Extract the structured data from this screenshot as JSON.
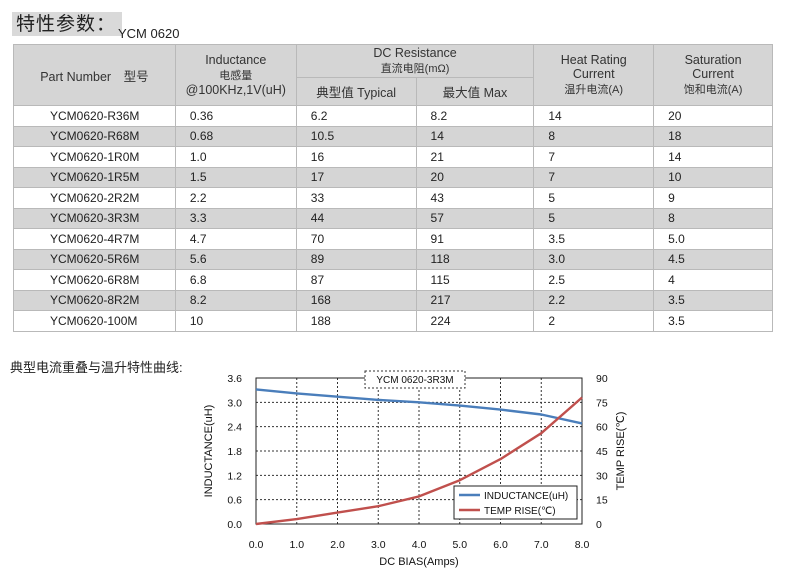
{
  "title": "特性参数：",
  "model": "YCM 0620",
  "table": {
    "headers": {
      "part": "Part Number　型号",
      "inductance": [
        "Inductance",
        "电感量",
        "@100KHz,1V(uH)"
      ],
      "dcr": [
        "DC Resistance",
        "直流电阻(mΩ)"
      ],
      "dcr_typ": "典型值 Typical",
      "dcr_max": "最大值 Max",
      "heat": [
        "Heat Rating",
        "Current",
        "温升电流(A)"
      ],
      "sat": [
        "Saturation",
        "Current",
        "饱和电流(A)"
      ]
    },
    "rows": [
      [
        "YCM0620-R36M",
        "0.36",
        "6.2",
        "8.2",
        "14",
        "20"
      ],
      [
        "YCM0620-R68M",
        "0.68",
        "10.5",
        "14",
        "8",
        "18"
      ],
      [
        "YCM0620-1R0M",
        "1.0",
        "16",
        "21",
        "7",
        "14"
      ],
      [
        "YCM0620-1R5M",
        "1.5",
        "17",
        "20",
        "7",
        "10"
      ],
      [
        "YCM0620-2R2M",
        "2.2",
        "33",
        "43",
        "5",
        "9"
      ],
      [
        "YCM0620-3R3M",
        "3.3",
        "44",
        "57",
        "5",
        "8"
      ],
      [
        "YCM0620-4R7M",
        "4.7",
        "70",
        "91",
        "3.5",
        "5.0"
      ],
      [
        "YCM0620-5R6M",
        "5.6",
        "89",
        "118",
        "3.0",
        "4.5"
      ],
      [
        "YCM0620-6R8M",
        "6.8",
        "87",
        "115",
        "2.5",
        "4"
      ],
      [
        "YCM0620-8R2M",
        "8.2",
        "168",
        "217",
        "2.2",
        "3.5"
      ],
      [
        "YCM0620-100M",
        "10",
        "188",
        "224",
        "2",
        "3.5"
      ]
    ]
  },
  "curve_section_title": "典型电流重叠与温升特性曲线:",
  "chart_data": {
    "type": "line",
    "title": "YCM 0620-3R3M",
    "xlabel": "DC BIAS(Amps)",
    "ylabel": "INDUCTANCE(uH)",
    "y2label": "TEMP RISE(℃)",
    "xlim": [
      0,
      8
    ],
    "ylim": [
      0,
      3.6
    ],
    "y2lim": [
      0,
      90
    ],
    "xticks": [
      "0.0",
      "1.0",
      "2.0",
      "3.0",
      "4.0",
      "5.0",
      "6.0",
      "7.0",
      "8.0"
    ],
    "yticks": [
      "0.0",
      "0.6",
      "1.2",
      "1.8",
      "2.4",
      "3.0",
      "3.6"
    ],
    "y2ticks": [
      "0",
      "15",
      "30",
      "45",
      "60",
      "75",
      "90"
    ],
    "grid": true,
    "legend_position": "bottom-right",
    "series": [
      {
        "name": "INDUCTANCE(uH)",
        "axis": "left",
        "color": "#4a7ebb",
        "x": [
          0,
          1,
          2,
          3,
          4,
          5,
          6,
          7,
          8
        ],
        "y": [
          3.32,
          3.22,
          3.14,
          3.06,
          3.0,
          2.92,
          2.82,
          2.7,
          2.48
        ]
      },
      {
        "name": "TEMP RISE(℃)",
        "axis": "right",
        "color": "#c0504d",
        "x": [
          0,
          1,
          2,
          3,
          4,
          5,
          6,
          7,
          8
        ],
        "y": [
          0,
          3,
          7,
          11,
          17,
          27,
          40,
          56,
          78
        ]
      }
    ]
  }
}
